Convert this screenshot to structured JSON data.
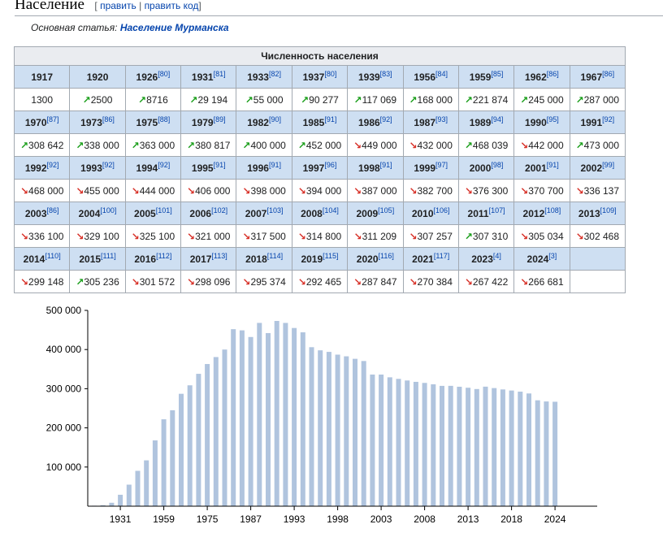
{
  "heading": {
    "title": "Население",
    "edit_open": "[",
    "edit_label": "править",
    "edit_sep": "|",
    "edit_code_label": "править код",
    "edit_close": "]"
  },
  "hatnote": {
    "prefix": "Основная статья:",
    "link": "Население Мурманска"
  },
  "table": {
    "caption": "Численность населения",
    "rows": [
      {
        "years": [
          [
            "1917",
            ""
          ],
          [
            "1920",
            ""
          ],
          [
            "1926",
            "[80]"
          ],
          [
            "1931",
            "[81]"
          ],
          [
            "1933",
            "[82]"
          ],
          [
            "1937",
            "[80]"
          ],
          [
            "1939",
            "[83]"
          ],
          [
            "1956",
            "[84]"
          ],
          [
            "1959",
            "[85]"
          ],
          [
            "1962",
            "[86]"
          ],
          [
            "1967",
            "[86]"
          ]
        ],
        "values": [
          [
            "",
            "1300"
          ],
          [
            "up",
            "2500"
          ],
          [
            "up",
            "8716"
          ],
          [
            "up",
            "29 194"
          ],
          [
            "up",
            "55 000"
          ],
          [
            "up",
            "90 277"
          ],
          [
            "up",
            "117 069"
          ],
          [
            "up",
            "168 000"
          ],
          [
            "up",
            "221 874"
          ],
          [
            "up",
            "245 000"
          ],
          [
            "up",
            "287 000"
          ]
        ]
      },
      {
        "years": [
          [
            "1970",
            "[87]"
          ],
          [
            "1973",
            "[86]"
          ],
          [
            "1975",
            "[88]"
          ],
          [
            "1979",
            "[89]"
          ],
          [
            "1982",
            "[90]"
          ],
          [
            "1985",
            "[91]"
          ],
          [
            "1986",
            "[92]"
          ],
          [
            "1987",
            "[93]"
          ],
          [
            "1989",
            "[94]"
          ],
          [
            "1990",
            "[95]"
          ],
          [
            "1991",
            "[92]"
          ]
        ],
        "values": [
          [
            "up",
            "308 642"
          ],
          [
            "up",
            "338 000"
          ],
          [
            "up",
            "363 000"
          ],
          [
            "up",
            "380 817"
          ],
          [
            "up",
            "400 000"
          ],
          [
            "up",
            "452 000"
          ],
          [
            "down",
            "449 000"
          ],
          [
            "down",
            "432 000"
          ],
          [
            "up",
            "468 039"
          ],
          [
            "down",
            "442 000"
          ],
          [
            "up",
            "473 000"
          ]
        ]
      },
      {
        "years": [
          [
            "1992",
            "[92]"
          ],
          [
            "1993",
            "[92]"
          ],
          [
            "1994",
            "[92]"
          ],
          [
            "1995",
            "[91]"
          ],
          [
            "1996",
            "[91]"
          ],
          [
            "1997",
            "[96]"
          ],
          [
            "1998",
            "[91]"
          ],
          [
            "1999",
            "[97]"
          ],
          [
            "2000",
            "[98]"
          ],
          [
            "2001",
            "[91]"
          ],
          [
            "2002",
            "[99]"
          ]
        ],
        "values": [
          [
            "down",
            "468 000"
          ],
          [
            "down",
            "455 000"
          ],
          [
            "down",
            "444 000"
          ],
          [
            "down",
            "406 000"
          ],
          [
            "down",
            "398 000"
          ],
          [
            "down",
            "394 000"
          ],
          [
            "down",
            "387 000"
          ],
          [
            "down",
            "382 700"
          ],
          [
            "down",
            "376 300"
          ],
          [
            "down",
            "370 700"
          ],
          [
            "down",
            "336 137"
          ]
        ]
      },
      {
        "years": [
          [
            "2003",
            "[86]"
          ],
          [
            "2004",
            "[100]"
          ],
          [
            "2005",
            "[101]"
          ],
          [
            "2006",
            "[102]"
          ],
          [
            "2007",
            "[103]"
          ],
          [
            "2008",
            "[104]"
          ],
          [
            "2009",
            "[105]"
          ],
          [
            "2010",
            "[106]"
          ],
          [
            "2011",
            "[107]"
          ],
          [
            "2012",
            "[108]"
          ],
          [
            "2013",
            "[109]"
          ]
        ],
        "values": [
          [
            "down",
            "336 100"
          ],
          [
            "down",
            "329 100"
          ],
          [
            "down",
            "325 100"
          ],
          [
            "down",
            "321 000"
          ],
          [
            "down",
            "317 500"
          ],
          [
            "down",
            "314 800"
          ],
          [
            "down",
            "311 209"
          ],
          [
            "down",
            "307 257"
          ],
          [
            "up",
            "307 310"
          ],
          [
            "down",
            "305 034"
          ],
          [
            "down",
            "302 468"
          ]
        ]
      },
      {
        "years": [
          [
            "2014",
            "[110]"
          ],
          [
            "2015",
            "[111]"
          ],
          [
            "2016",
            "[112]"
          ],
          [
            "2017",
            "[113]"
          ],
          [
            "2018",
            "[114]"
          ],
          [
            "2019",
            "[115]"
          ],
          [
            "2020",
            "[116]"
          ],
          [
            "2021",
            "[117]"
          ],
          [
            "2023",
            "[4]"
          ],
          [
            "2024",
            "[3]"
          ],
          [
            "",
            ""
          ]
        ],
        "values": [
          [
            "down",
            "299 148"
          ],
          [
            "up",
            "305 236"
          ],
          [
            "down",
            "301 572"
          ],
          [
            "down",
            "298 096"
          ],
          [
            "down",
            "295 374"
          ],
          [
            "down",
            "292 465"
          ],
          [
            "down",
            "287 847"
          ],
          [
            "down",
            "270 384"
          ],
          [
            "down",
            "267 422"
          ],
          [
            "down",
            "266 681"
          ],
          [
            "",
            ""
          ]
        ]
      }
    ]
  },
  "icons": {
    "up": "↗",
    "down": "↘"
  },
  "colors": {
    "bar": "#b0c4de",
    "year_row": "#cedff2",
    "caption_row": "#eaecf0",
    "up": "#1a9e1a",
    "down": "#d73027",
    "link": "#0645ad"
  },
  "chart_data": {
    "type": "bar",
    "categories": [
      "1917",
      "1920",
      "1926",
      "1931",
      "1933",
      "1937",
      "1939",
      "1956",
      "1959",
      "1962",
      "1967",
      "1970",
      "1973",
      "1975",
      "1979",
      "1982",
      "1985",
      "1986",
      "1987",
      "1989",
      "1990",
      "1991",
      "1992",
      "1993",
      "1994",
      "1995",
      "1996",
      "1997",
      "1998",
      "1999",
      "2000",
      "2001",
      "2002",
      "2003",
      "2004",
      "2005",
      "2006",
      "2007",
      "2008",
      "2009",
      "2010",
      "2011",
      "2012",
      "2013",
      "2014",
      "2015",
      "2016",
      "2017",
      "2018",
      "2019",
      "2020",
      "2021",
      "2023",
      "2024"
    ],
    "values": [
      1300,
      2500,
      8716,
      29194,
      55000,
      90277,
      117069,
      168000,
      221874,
      245000,
      287000,
      308642,
      338000,
      363000,
      380817,
      400000,
      452000,
      449000,
      432000,
      468039,
      442000,
      473000,
      468000,
      455000,
      444000,
      406000,
      398000,
      394000,
      387000,
      382700,
      376300,
      370700,
      336137,
      336100,
      329100,
      325100,
      321000,
      317500,
      314800,
      311209,
      307257,
      307310,
      305034,
      302468,
      299148,
      305236,
      301572,
      298096,
      295374,
      292465,
      287847,
      270384,
      267422,
      266681
    ],
    "ylim": [
      0,
      500000
    ],
    "yticks": [
      "100 000",
      "200 000",
      "300 000",
      "400 000",
      "500 000"
    ],
    "ytick_values": [
      100000,
      200000,
      300000,
      400000,
      500000
    ],
    "xticks": [
      "1931",
      "1959",
      "1975",
      "1987",
      "1993",
      "1998",
      "2003",
      "2008",
      "2013",
      "2018",
      "2024"
    ],
    "grid": false,
    "title": "",
    "xlabel": "",
    "ylabel": ""
  }
}
